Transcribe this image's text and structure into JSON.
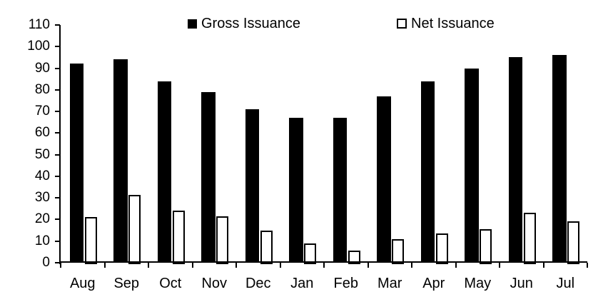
{
  "chart_data": {
    "type": "bar",
    "title": "",
    "xlabel": "",
    "ylabel": "",
    "categories": [
      "Aug",
      "Sep",
      "Oct",
      "Nov",
      "Dec",
      "Jan",
      "Feb",
      "Mar",
      "Apr",
      "May",
      "Jun",
      "Jul"
    ],
    "series": [
      {
        "name": "Gross Issuance",
        "fill": "#000000",
        "border": "#000000",
        "values": [
          92,
          94,
          84,
          79,
          71,
          67,
          67,
          77,
          84,
          90,
          95,
          96
        ]
      },
      {
        "name": "Net Issuance",
        "fill": "#FFFFFF",
        "border": "#000000",
        "values": [
          21,
          31.5,
          24,
          21.5,
          15,
          9,
          5.5,
          11,
          13.5,
          15.5,
          23,
          19
        ]
      }
    ],
    "ylim": [
      0,
      110
    ],
    "yticks": [
      0,
      10,
      20,
      30,
      40,
      50,
      60,
      70,
      80,
      90,
      100,
      110
    ],
    "grid": false,
    "legend_position": "top",
    "axis_color": "#000000",
    "text_color": "#000000",
    "background": "#FFFFFF"
  }
}
